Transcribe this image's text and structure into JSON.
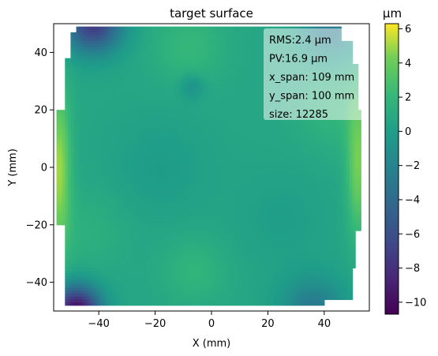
{
  "chart_data": {
    "type": "heatmap",
    "title": "target surface",
    "xlabel": "X (mm)",
    "ylabel": "Y (mm)",
    "xlim": [
      -56,
      56
    ],
    "ylim": [
      -50,
      50
    ],
    "x_ticks": [
      -40,
      -20,
      0,
      20,
      40
    ],
    "y_ticks": [
      40,
      20,
      0,
      -20,
      -40
    ],
    "x_tick_labels": [
      "−40",
      "−20",
      "0",
      "20",
      "40"
    ],
    "y_tick_labels": [
      "40",
      "20",
      "0",
      "−20",
      "−40"
    ],
    "colorbar": {
      "unit_label": "μm",
      "colormap": "viridis",
      "min": -10.7,
      "max": 6.3,
      "ticks": [
        6,
        4,
        2,
        0,
        -2,
        -4,
        -6,
        -8,
        -10
      ],
      "tick_labels": [
        "6",
        "4",
        "2",
        "0",
        "−2",
        "−4",
        "−6",
        "−8",
        "−10"
      ]
    },
    "annotations": [
      "RMS:2.4 μm",
      "PV:16.9 μm",
      "x_span: 109 mm",
      "y_span: 100 mm",
      "size: 12285"
    ]
  }
}
